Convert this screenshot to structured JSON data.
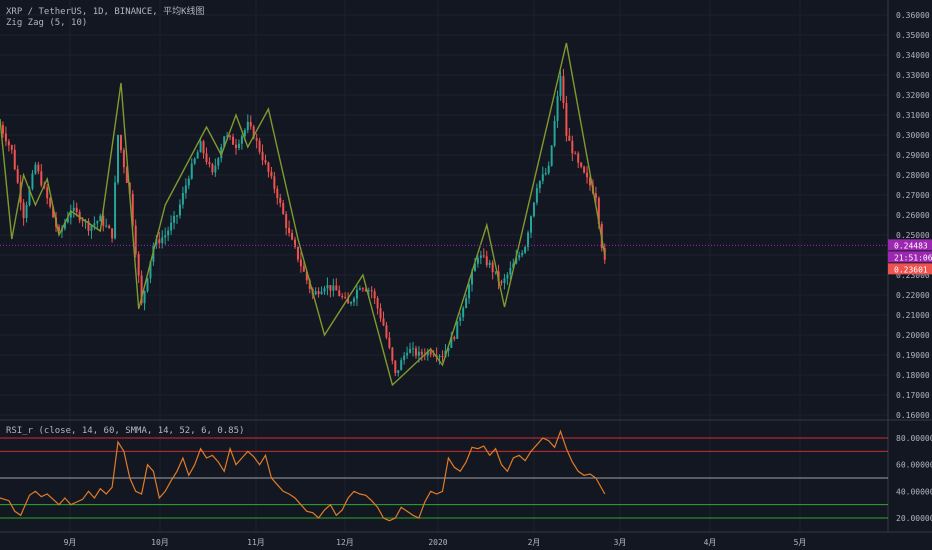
{
  "header": {
    "symbol_line": "XRP / TetherUS, 1D, BINANCE, 平均K线图",
    "indicator_line": "Zig Zag (5, 10)",
    "rsi_line": "RSI_r (close, 14, 60, SMMA, 14, 52, 6, 0.85)"
  },
  "price_tags": {
    "current": "0.24483",
    "countdown": "21:51:06",
    "low": "0.23601"
  },
  "colors": {
    "background": "#131722",
    "up": "#26a69a",
    "down": "#ef5350",
    "zigzag": "#7f9a2e",
    "rsi": "#e07b27",
    "band_upper": "#cc2e2e",
    "band_lower": "#2ea82e",
    "band_mid": "#a0a3ab",
    "current_tag": "#9c27b0",
    "low_tag": "#ef5350"
  },
  "chart_data": [
    {
      "type": "candlestick",
      "title": "XRP / TetherUS, 1D, BINANCE, 平均K线图",
      "y_ticks": [
        "0.36000",
        "0.35000",
        "0.34000",
        "0.33000",
        "0.32000",
        "0.31000",
        "0.30000",
        "0.29000",
        "0.28000",
        "0.27000",
        "0.26000",
        "0.25000",
        "0.24000",
        "0.23000",
        "0.22000",
        "0.21000",
        "0.20000",
        "0.19000",
        "0.18000",
        "0.17000",
        "0.16000"
      ],
      "ylim": [
        0.16,
        0.36
      ],
      "x_ticks": [
        "9月",
        "10月",
        "11月",
        "12月",
        "2020",
        "2月",
        "3月",
        "4月",
        "5月"
      ],
      "close_path": [
        [
          0,
          0.305
        ],
        [
          4,
          0.292
        ],
        [
          8,
          0.26
        ],
        [
          12,
          0.285
        ],
        [
          16,
          0.268
        ],
        [
          20,
          0.25
        ],
        [
          24,
          0.263
        ],
        [
          28,
          0.258
        ],
        [
          30,
          0.254
        ],
        [
          34,
          0.258
        ],
        [
          38,
          0.25
        ],
        [
          40,
          0.3
        ],
        [
          44,
          0.27
        ],
        [
          48,
          0.215
        ],
        [
          52,
          0.245
        ],
        [
          56,
          0.25
        ],
        [
          60,
          0.26
        ],
        [
          64,
          0.28
        ],
        [
          68,
          0.295
        ],
        [
          72,
          0.28
        ],
        [
          76,
          0.3
        ],
        [
          80,
          0.295
        ],
        [
          84,
          0.305
        ],
        [
          86,
          0.3
        ],
        [
          90,
          0.285
        ],
        [
          94,
          0.27
        ],
        [
          98,
          0.25
        ],
        [
          102,
          0.235
        ],
        [
          106,
          0.22
        ],
        [
          110,
          0.225
        ],
        [
          114,
          0.222
        ],
        [
          118,
          0.215
        ],
        [
          122,
          0.225
        ],
        [
          126,
          0.222
        ],
        [
          130,
          0.205
        ],
        [
          134,
          0.18
        ],
        [
          138,
          0.193
        ],
        [
          142,
          0.19
        ],
        [
          146,
          0.192
        ],
        [
          150,
          0.19
        ],
        [
          154,
          0.2
        ],
        [
          158,
          0.22
        ],
        [
          162,
          0.24
        ],
        [
          166,
          0.235
        ],
        [
          170,
          0.225
        ],
        [
          174,
          0.235
        ],
        [
          178,
          0.245
        ],
        [
          182,
          0.275
        ],
        [
          186,
          0.283
        ],
        [
          190,
          0.33
        ],
        [
          192,
          0.3
        ],
        [
          196,
          0.285
        ],
        [
          200,
          0.275
        ],
        [
          202,
          0.27
        ],
        [
          204,
          0.245
        ],
        [
          205,
          0.236
        ]
      ],
      "zigzag": [
        [
          0,
          0.308
        ],
        [
          4,
          0.248
        ],
        [
          8,
          0.28
        ],
        [
          12,
          0.265
        ],
        [
          16,
          0.278
        ],
        [
          20,
          0.25
        ],
        [
          24,
          0.262
        ],
        [
          28,
          0.258
        ],
        [
          34,
          0.252
        ],
        [
          41,
          0.326
        ],
        [
          47,
          0.213
        ],
        [
          56,
          0.265
        ],
        [
          70,
          0.304
        ],
        [
          75,
          0.29
        ],
        [
          80,
          0.31
        ],
        [
          84,
          0.294
        ],
        [
          91,
          0.313
        ],
        [
          101,
          0.248
        ],
        [
          110,
          0.2
        ],
        [
          123,
          0.23
        ],
        [
          133,
          0.175
        ],
        [
          146,
          0.193
        ],
        [
          150,
          0.185
        ],
        [
          165,
          0.255
        ],
        [
          171,
          0.214
        ],
        [
          192,
          0.346
        ],
        [
          205,
          0.24
        ]
      ]
    },
    {
      "type": "line",
      "title": "RSI_r (close, 14, 60, SMMA, 14, 52, 6, 0.85)",
      "y_ticks": [
        "80.00000",
        "60.00000",
        "40.00000",
        "20.00000"
      ],
      "ylim": [
        12,
        90
      ],
      "bands": {
        "upper": [
          80,
          70
        ],
        "mid": 50,
        "lower": [
          30,
          20
        ]
      },
      "series": [
        {
          "values": [
            [
              0,
              35
            ],
            [
              3,
              33
            ],
            [
              5,
              25
            ],
            [
              7,
              22
            ],
            [
              10,
              37
            ],
            [
              12,
              40
            ],
            [
              14,
              36
            ],
            [
              16,
              38
            ],
            [
              18,
              34
            ],
            [
              20,
              30
            ],
            [
              22,
              35
            ],
            [
              24,
              30
            ],
            [
              26,
              32
            ],
            [
              28,
              34
            ],
            [
              30,
              40
            ],
            [
              32,
              35
            ],
            [
              34,
              42
            ],
            [
              36,
              38
            ],
            [
              38,
              43
            ],
            [
              40,
              77
            ],
            [
              42,
              70
            ],
            [
              44,
              50
            ],
            [
              46,
              40
            ],
            [
              48,
              38
            ],
            [
              50,
              60
            ],
            [
              52,
              55
            ],
            [
              54,
              35
            ],
            [
              56,
              40
            ],
            [
              58,
              48
            ],
            [
              60,
              55
            ],
            [
              62,
              65
            ],
            [
              64,
              52
            ],
            [
              66,
              60
            ],
            [
              68,
              72
            ],
            [
              70,
              65
            ],
            [
              72,
              67
            ],
            [
              74,
              62
            ],
            [
              76,
              55
            ],
            [
              78,
              72
            ],
            [
              80,
              60
            ],
            [
              82,
              65
            ],
            [
              84,
              70
            ],
            [
              86,
              66
            ],
            [
              88,
              60
            ],
            [
              90,
              67
            ],
            [
              92,
              50
            ],
            [
              94,
              45
            ],
            [
              96,
              40
            ],
            [
              98,
              38
            ],
            [
              100,
              35
            ],
            [
              102,
              30
            ],
            [
              104,
              25
            ],
            [
              106,
              24
            ],
            [
              108,
              20
            ],
            [
              110,
              26
            ],
            [
              112,
              30
            ],
            [
              114,
              22
            ],
            [
              116,
              26
            ],
            [
              118,
              35
            ],
            [
              120,
              40
            ],
            [
              122,
              38
            ],
            [
              124,
              37
            ],
            [
              126,
              33
            ],
            [
              128,
              28
            ],
            [
              130,
              20
            ],
            [
              132,
              18
            ],
            [
              134,
              20
            ],
            [
              136,
              28
            ],
            [
              138,
              25
            ],
            [
              140,
              22
            ],
            [
              142,
              20
            ],
            [
              144,
              32
            ],
            [
              146,
              40
            ],
            [
              148,
              38
            ],
            [
              150,
              40
            ],
            [
              152,
              65
            ],
            [
              154,
              58
            ],
            [
              156,
              55
            ],
            [
              158,
              62
            ],
            [
              160,
              73
            ],
            [
              162,
              72
            ],
            [
              164,
              74
            ],
            [
              166,
              67
            ],
            [
              168,
              72
            ],
            [
              170,
              60
            ],
            [
              172,
              55
            ],
            [
              174,
              65
            ],
            [
              176,
              67
            ],
            [
              178,
              63
            ],
            [
              180,
              70
            ],
            [
              182,
              75
            ],
            [
              184,
              80
            ],
            [
              186,
              78
            ],
            [
              188,
              73
            ],
            [
              190,
              85
            ],
            [
              192,
              72
            ],
            [
              194,
              62
            ],
            [
              196,
              55
            ],
            [
              198,
              52
            ],
            [
              200,
              53
            ],
            [
              202,
              50
            ],
            [
              205,
              38
            ]
          ]
        }
      ]
    }
  ]
}
